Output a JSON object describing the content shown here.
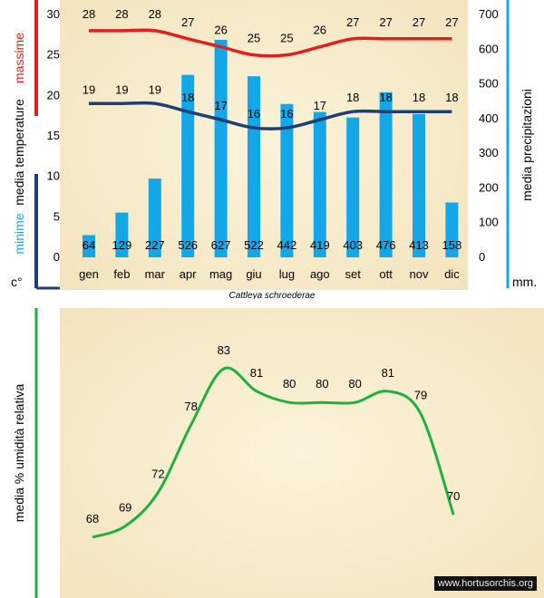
{
  "chart_data": [
    {
      "type": "bar",
      "categories": [
        "gen",
        "feb",
        "mar",
        "apr",
        "mag",
        "giu",
        "lug",
        "ago",
        "set",
        "ott",
        "nov",
        "dic"
      ],
      "series": [
        {
          "name": "precipitazioni",
          "axis": "right",
          "values": [
            64,
            129,
            227,
            526,
            627,
            522,
            442,
            419,
            403,
            476,
            413,
            158
          ]
        },
        {
          "name": "massime",
          "axis": "left",
          "type": "line",
          "color": "#e02020",
          "values": [
            28,
            28,
            28,
            27,
            26,
            25,
            25,
            26,
            27,
            27,
            27,
            27
          ]
        },
        {
          "name": "minime",
          "axis": "left",
          "type": "line",
          "color": "#1f3e74",
          "values": [
            19,
            19,
            19,
            18,
            17,
            16,
            16,
            17,
            18,
            18,
            18,
            18
          ]
        }
      ],
      "left_axis": {
        "ylim": [
          0,
          30
        ],
        "ticks": [
          0,
          5,
          10,
          15,
          20,
          25,
          30
        ],
        "unit": "c°"
      },
      "right_axis": {
        "ylim": [
          0,
          700
        ],
        "ticks": [
          0,
          100,
          200,
          300,
          400,
          500,
          600,
          700
        ],
        "unit": "mm.",
        "label": "media precipitazioni"
      },
      "left_labels": {
        "max": "massime",
        "temp": "media temperature",
        "min": "minime"
      },
      "bar_color": "#14a7e8",
      "caption": "Cattleya schroederae"
    },
    {
      "type": "line",
      "values": [
        68,
        69,
        72,
        78,
        83,
        81,
        80,
        80,
        80,
        81,
        79,
        70
      ],
      "ylabel": "media % umidità relativa",
      "color": "#20b040"
    }
  ],
  "watermark": "www.hortusorchis.org"
}
